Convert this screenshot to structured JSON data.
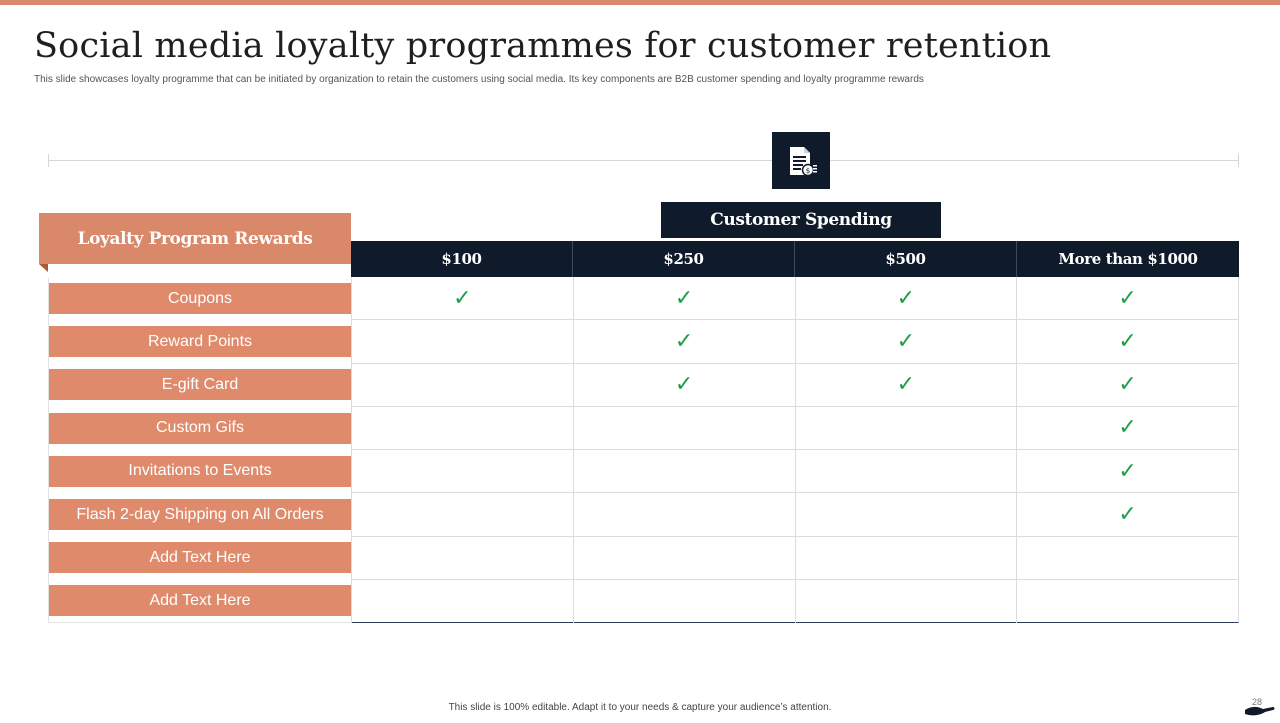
{
  "slide": {
    "title": "Social media loyalty programmes for customer retention",
    "subtitle": "This slide showcases loyalty programme that can be initiated by organization to retain the customers using social media.  Its key components are B2B customer spending and loyalty programme rewards",
    "footer": "This slide is 100% editable.  Adapt it to your needs & capture your audience’s attention.",
    "page_number": "28"
  },
  "icons": {
    "header_icon": "invoice-document-icon",
    "footer_icon": "hand-icon"
  },
  "colors": {
    "accent": "#d9886a",
    "label_fill": "#e08a6c",
    "dark": "#0f1b2a",
    "check": "#1e9e4a"
  },
  "table": {
    "rewards_header": "Loyalty Program Rewards",
    "spending_header": "Customer Spending",
    "columns": [
      "$100",
      "$250",
      "$500",
      "More than $1000"
    ],
    "check_glyph": "✓",
    "rows": [
      {
        "label": "Coupons",
        "checks": [
          true,
          true,
          true,
          true
        ]
      },
      {
        "label": "Reward Points",
        "checks": [
          false,
          true,
          true,
          true
        ]
      },
      {
        "label": "E-gift Card",
        "checks": [
          false,
          true,
          true,
          true
        ]
      },
      {
        "label": "Custom Gifs",
        "checks": [
          false,
          false,
          false,
          true
        ]
      },
      {
        "label": "Invitations  to Events",
        "checks": [
          false,
          false,
          false,
          true
        ]
      },
      {
        "label": "Flash 2-day Shipping on All Orders",
        "checks": [
          false,
          false,
          false,
          true
        ]
      },
      {
        "label": "Add Text Here",
        "checks": [
          false,
          false,
          false,
          false
        ]
      },
      {
        "label": "Add Text Here",
        "checks": [
          false,
          false,
          false,
          false
        ]
      }
    ]
  }
}
